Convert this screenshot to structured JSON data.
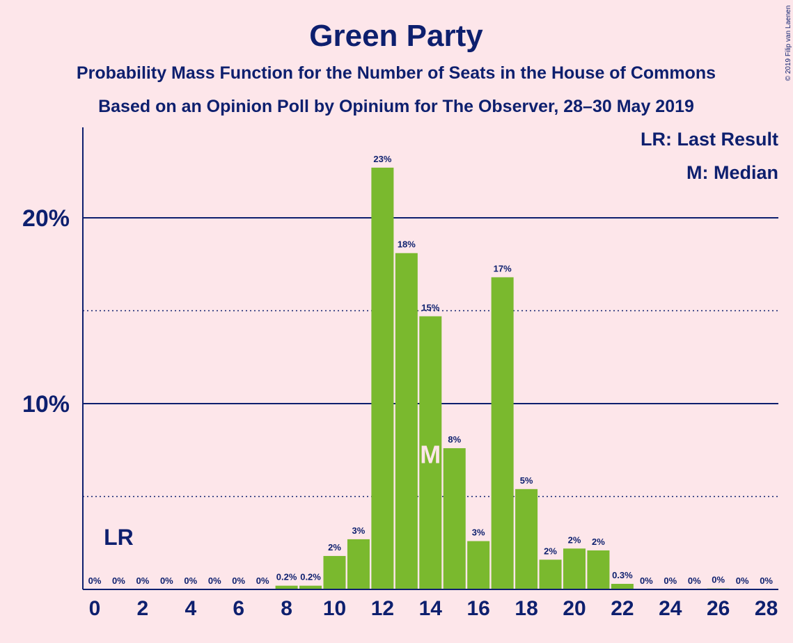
{
  "chart_data": {
    "type": "bar",
    "title": "Green Party",
    "subtitle1": "Probability Mass Function for the Number of Seats in the House of Commons",
    "subtitle2": "Based on an Opinion Poll by Opinium for The Observer, 28–30 May 2019",
    "copyright": "© 2019 Filip van Laenen",
    "legend": {
      "last_result": "LR: Last Result",
      "median": "M: Median"
    },
    "categories": [
      0,
      1,
      2,
      3,
      4,
      5,
      6,
      7,
      8,
      9,
      10,
      11,
      12,
      13,
      14,
      15,
      16,
      17,
      18,
      19,
      20,
      21,
      22,
      23,
      24,
      25,
      26,
      27,
      28
    ],
    "values": [
      0,
      0,
      0,
      0,
      0,
      0,
      0,
      0,
      0.2,
      0.2,
      1.8,
      2.7,
      22.7,
      18.1,
      14.7,
      7.6,
      2.6,
      16.8,
      5.4,
      1.6,
      2.2,
      2.1,
      0.3,
      0,
      0,
      0,
      0.05,
      0,
      0
    ],
    "value_labels": [
      "0%",
      "0%",
      "0%",
      "0%",
      "0%",
      "0%",
      "0%",
      "0%",
      "0.2%",
      "0.2%",
      "2%",
      "3%",
      "23%",
      "18%",
      "15%",
      "8%",
      "3%",
      "17%",
      "5%",
      "2%",
      "2%",
      "2%",
      "0.3%",
      "0%",
      "0%",
      "0%",
      "0%",
      "0%",
      "0%"
    ],
    "x_tick_labels": [
      "0",
      "2",
      "4",
      "6",
      "8",
      "10",
      "12",
      "14",
      "16",
      "18",
      "20",
      "22",
      "24",
      "26",
      "28"
    ],
    "y_tick_labels": [
      "10%",
      "20%"
    ],
    "y_major_ticks": [
      10,
      20
    ],
    "y_minor_ticks": [
      5,
      15
    ],
    "ylim": [
      0,
      24.8
    ],
    "last_result_seat": 1,
    "last_result_label": "LR",
    "median_seat": 14,
    "median_label": "M",
    "colors": {
      "bar": "#7ab92e",
      "text": "#0d1f6e",
      "background": "#fde6ea"
    }
  }
}
